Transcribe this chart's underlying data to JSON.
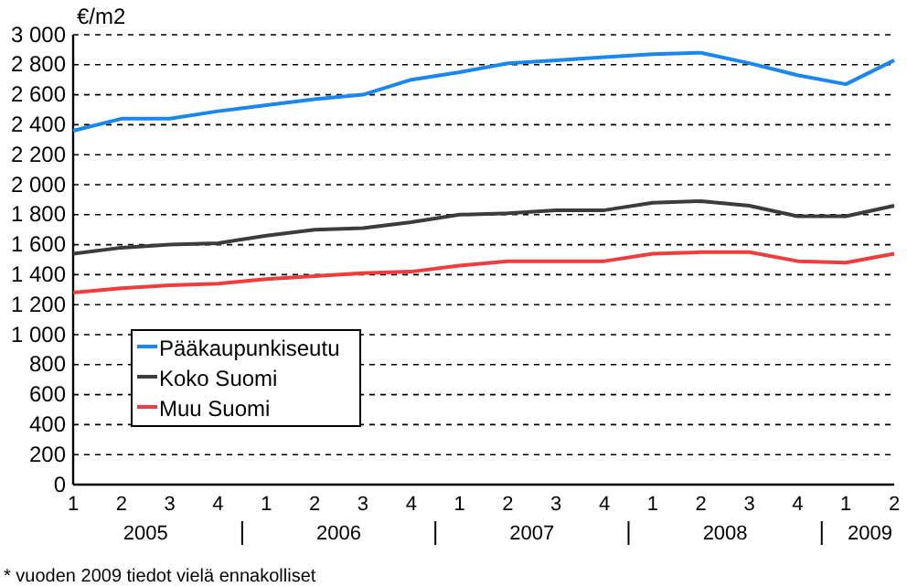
{
  "chart_data": {
    "type": "line",
    "ylabel": "€/m2",
    "categories": [
      "1",
      "2",
      "3",
      "4",
      "1",
      "2",
      "3",
      "4",
      "1",
      "2",
      "3",
      "4",
      "1",
      "2",
      "3",
      "4",
      "1",
      "2"
    ],
    "series": [
      {
        "name": "Pääkaupunkiseutu",
        "color": "#1a86f0",
        "values": [
          2360,
          2440,
          2440,
          2490,
          2530,
          2570,
          2600,
          2700,
          2750,
          2810,
          2830,
          2850,
          2870,
          2880,
          2810,
          2730,
          2670,
          2830
        ]
      },
      {
        "name": "Koko Suomi",
        "color": "#3c3c3c",
        "values": [
          1540,
          1580,
          1600,
          1610,
          1660,
          1700,
          1710,
          1750,
          1800,
          1810,
          1830,
          1830,
          1880,
          1890,
          1860,
          1790,
          1790,
          1860
        ]
      },
      {
        "name": "Muu Suomi",
        "color": "#f03c3c",
        "values": [
          1280,
          1310,
          1330,
          1340,
          1370,
          1390,
          1410,
          1420,
          1460,
          1490,
          1490,
          1490,
          1540,
          1550,
          1550,
          1490,
          1480,
          1540
        ]
      }
    ],
    "ylim": [
      0,
      3000
    ],
    "yticks": [
      0,
      200,
      400,
      600,
      800,
      {
        "value": 1000,
        "label": "1 000"
      },
      {
        "value": 1200,
        "label": "1 200"
      },
      {
        "value": 1400,
        "label": "1 400"
      },
      {
        "value": 1600,
        "label": "1 600"
      },
      {
        "value": 1800,
        "label": "1 800"
      },
      {
        "value": 2000,
        "label": "2 000"
      },
      {
        "value": 2200,
        "label": "2 200"
      },
      {
        "value": 2400,
        "label": "2 400"
      },
      {
        "value": 2600,
        "label": "2 600"
      },
      {
        "value": 2800,
        "label": "2 800"
      },
      {
        "value": 3000,
        "label": "3 000"
      }
    ],
    "grid": "y",
    "legend": "bottom left",
    "marker": "none",
    "line_style": "solid",
    "annotations": [
      "2005",
      "2006",
      "2007",
      "2008",
      "2009",
      "* vuoden 2009 tiedot vielä ennakolliset"
    ]
  }
}
